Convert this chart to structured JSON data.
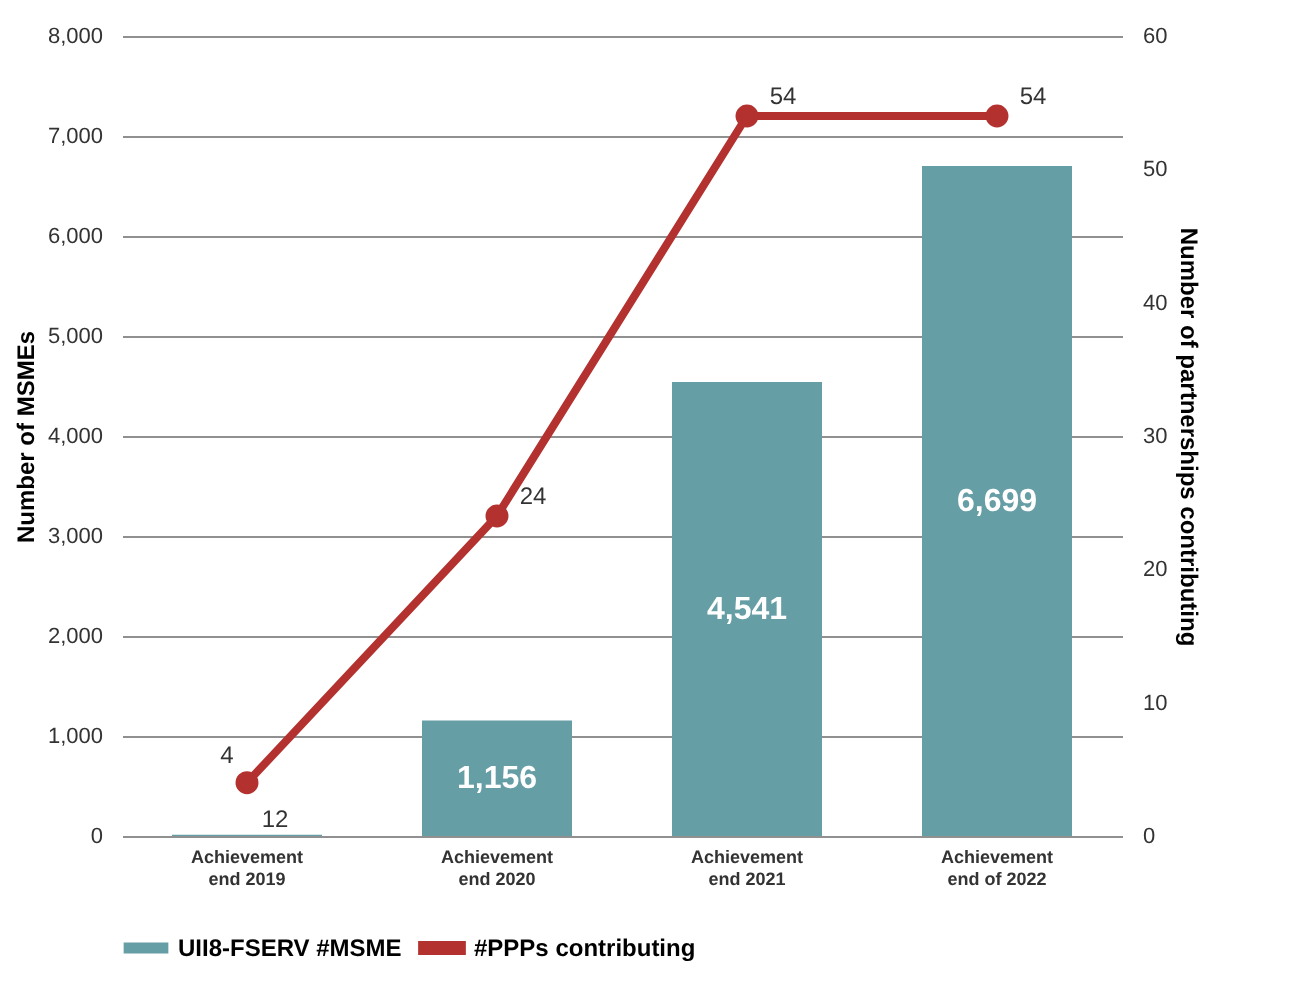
{
  "chart_data": {
    "type": "bar",
    "categories": [
      "Achievement end 2019",
      "Achievement end 2020",
      "Achievement end 2021",
      "Achievement end of 2022"
    ],
    "ylabel": "Number of MSMEs",
    "y2label": "Number of partnerships contributing",
    "ylim": [
      0,
      8000
    ],
    "yticks": [
      0,
      {
        "value": 1000,
        "label": "1,000"
      },
      {
        "value": 2000,
        "label": "2,000"
      },
      {
        "value": 3000,
        "label": "3,000"
      },
      {
        "value": 4000,
        "label": "4,000"
      },
      {
        "value": 5000,
        "label": "5,000"
      },
      {
        "value": 6000,
        "label": "6,000"
      },
      {
        "value": 7000,
        "label": "7,000"
      },
      {
        "value": 8000,
        "label": "8,000"
      }
    ],
    "y2lim": [
      0,
      60
    ],
    "y2ticks": [
      0,
      10,
      20,
      30,
      40,
      50,
      60
    ],
    "series": [
      {
        "name": "UII8-FSERV #MSME",
        "color": "#669ea6",
        "values": [
          12,
          1156,
          4541,
          6699
        ],
        "value_labels": [
          "12",
          "1,156",
          "4,541",
          "6,699"
        ]
      },
      {
        "name": "#PPPs contributing",
        "type": "line",
        "axis": "y2",
        "color": "#b3312e",
        "values": [
          4,
          24,
          54,
          54
        ],
        "value_labels": [
          "4",
          "24",
          "54",
          "54"
        ]
      }
    ],
    "grid": "y",
    "legend": "bottom",
    "marker": "circle",
    "line_style": "solid"
  }
}
